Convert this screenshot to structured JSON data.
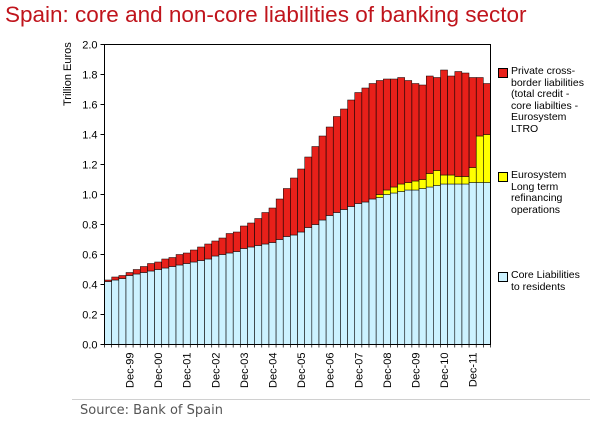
{
  "page": {
    "title": "Spain: core and non-core liabilities of banking sector",
    "source": "Source: Bank of Spain"
  },
  "colors": {
    "title": "#c0141c",
    "core": "#ccf2ff",
    "ltro": "#ffff00",
    "private": "#e8201a",
    "plot_bg": "#ffffff"
  },
  "chart_data": {
    "type": "bar",
    "stacked": true,
    "ylabel": "Trillion Euros",
    "ylim": [
      0,
      2.0
    ],
    "yticks": [
      "0.0",
      "0.2",
      "0.4",
      "0.6",
      "0.8",
      "1.0",
      "1.2",
      "1.4",
      "1.6",
      "1.8",
      "2.0"
    ],
    "xtick_labels": [
      "Dec-99",
      "Dec-00",
      "Dec-01",
      "Dec-02",
      "Dec-03",
      "Dec-04",
      "Dec-05",
      "Dec-06",
      "Dec-07",
      "Dec-08",
      "Dec-09",
      "Dec-10",
      "Dec-11"
    ],
    "xtick_bar_index": [
      3,
      7,
      11,
      15,
      19,
      23,
      27,
      31,
      35,
      39,
      43,
      47,
      51
    ],
    "legend": [
      {
        "label": "Private cross-border liabilities (total credit - core liabilties - Eurosystem LTRO",
        "color": "#e8201a"
      },
      {
        "label": "Eurosystem Long term refinancing operations",
        "color": "#ffff00"
      },
      {
        "label": "Core Liabilities to residents",
        "color": "#ccf2ff"
      }
    ],
    "legend_position": "right",
    "grid": false,
    "series": [
      {
        "name": "Core Liabilities to residents",
        "values": [
          0.42,
          0.43,
          0.44,
          0.46,
          0.47,
          0.48,
          0.49,
          0.5,
          0.51,
          0.52,
          0.53,
          0.54,
          0.55,
          0.56,
          0.57,
          0.59,
          0.6,
          0.61,
          0.62,
          0.64,
          0.65,
          0.66,
          0.67,
          0.68,
          0.7,
          0.72,
          0.73,
          0.75,
          0.78,
          0.8,
          0.83,
          0.86,
          0.88,
          0.9,
          0.92,
          0.94,
          0.95,
          0.97,
          0.98,
          1.0,
          1.01,
          1.02,
          1.03,
          1.03,
          1.04,
          1.05,
          1.06,
          1.07,
          1.07,
          1.07,
          1.07,
          1.08,
          1.08,
          1.08
        ]
      },
      {
        "name": "Eurosystem Long term refinancing operations",
        "values": [
          0,
          0,
          0,
          0,
          0,
          0,
          0,
          0,
          0,
          0,
          0,
          0,
          0,
          0,
          0,
          0,
          0,
          0,
          0,
          0,
          0,
          0,
          0,
          0,
          0,
          0,
          0,
          0,
          0,
          0,
          0,
          0,
          0,
          0,
          0,
          0,
          0,
          0,
          0.02,
          0.03,
          0.04,
          0.05,
          0.05,
          0.06,
          0.06,
          0.09,
          0.1,
          0.06,
          0.06,
          0.05,
          0.05,
          0.1,
          0.31,
          0.32
        ]
      },
      {
        "name": "Private cross-border liabilities (total credit - core liabilties - Eurosystem LTRO",
        "values": [
          0.01,
          0.02,
          0.02,
          0.02,
          0.03,
          0.04,
          0.05,
          0.05,
          0.06,
          0.06,
          0.07,
          0.07,
          0.08,
          0.09,
          0.1,
          0.1,
          0.11,
          0.13,
          0.13,
          0.15,
          0.16,
          0.18,
          0.21,
          0.23,
          0.27,
          0.32,
          0.38,
          0.42,
          0.47,
          0.52,
          0.56,
          0.59,
          0.64,
          0.67,
          0.71,
          0.74,
          0.76,
          0.77,
          0.76,
          0.74,
          0.72,
          0.71,
          0.68,
          0.65,
          0.63,
          0.65,
          0.62,
          0.7,
          0.66,
          0.7,
          0.69,
          0.6,
          0.39,
          0.34
        ]
      }
    ]
  }
}
